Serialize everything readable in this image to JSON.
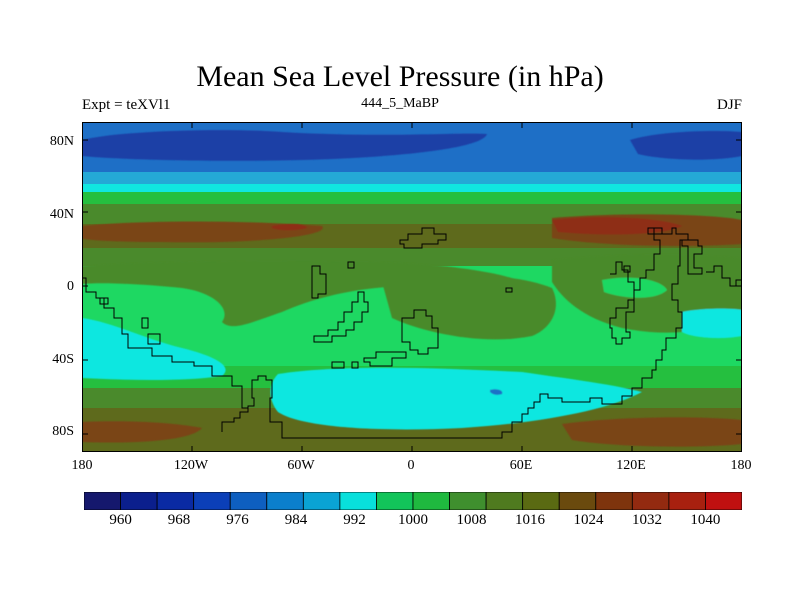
{
  "title": "Mean Sea Level Pressure (in hPa)",
  "experiment_label": "Expt = teXVl1",
  "period_label": "444_5_MaBP",
  "season_label": "DJF",
  "lat_ticks": [
    "80N",
    "40N",
    "0",
    "40S",
    "80S"
  ],
  "lon_ticks": [
    "180",
    "120W",
    "60W",
    "0",
    "60E",
    "120E",
    "180"
  ],
  "colorbar": {
    "labels": [
      "960",
      "968",
      "976",
      "984",
      "992",
      "1000",
      "1008",
      "1016",
      "1024",
      "1032",
      "1040"
    ],
    "colors": [
      "#15186d",
      "#0b1f8d",
      "#0a2aa3",
      "#0b3fb8",
      "#0e5fc0",
      "#0b7fcc",
      "#0aa3d4",
      "#08e0dc",
      "#12c45a",
      "#1fb93f",
      "#3f8f2e",
      "#4f7a1f",
      "#5a6a12",
      "#6a4a0e",
      "#7e340d",
      "#932a10",
      "#a8200f",
      "#c01010"
    ]
  },
  "colors": {
    "deep_low": "#1f3fa6",
    "low": "#1e6fc6",
    "mid_low": "#24a9d6",
    "cyan": "#10e7e0",
    "green_light": "#1ed862",
    "green": "#25bf3f",
    "olive": "#4a8a2c",
    "olive_dark": "#5e6a1c",
    "brown": "#7a4417",
    "red_brown": "#8e2e12"
  }
}
